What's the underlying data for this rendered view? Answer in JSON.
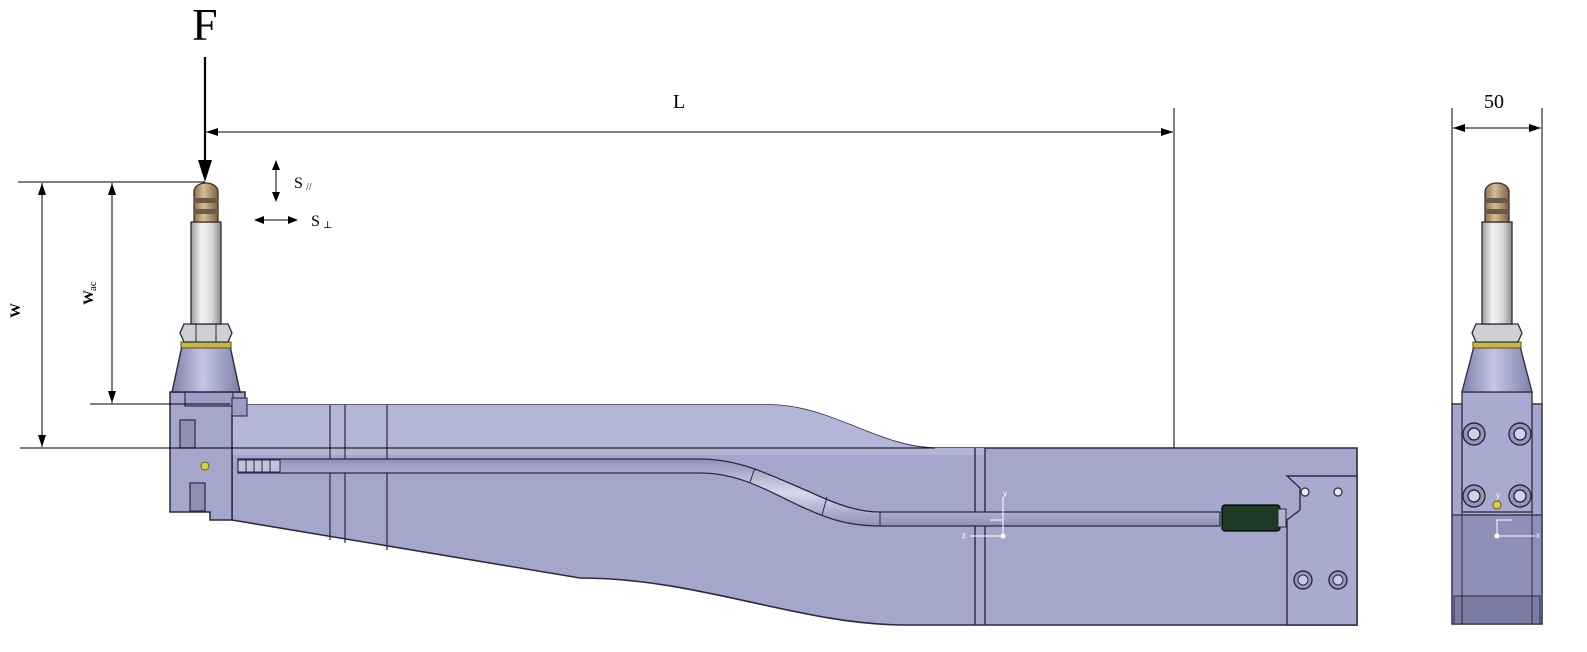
{
  "labels": {
    "force": "F",
    "length": "L",
    "width_dim": "50",
    "s_parallel": "S",
    "s_parallel_sub": "//",
    "s_perp": "S",
    "s_perp_sub": "⊥",
    "w": "W",
    "w_ac": "W",
    "w_ac_sub": "ac"
  },
  "axes_front": {
    "y": "y",
    "z": "z"
  },
  "axes_side": {
    "y": "y",
    "x": "x"
  },
  "colors": {
    "body": "#a4a6cb",
    "body_dark": "#8e90b8",
    "body_edge": "#2a2a40",
    "cap": "#b79a74",
    "cap_band": "#6a5a44",
    "shaft": "#dedede",
    "nut": "#cfcfd4",
    "brass": "#c8b840",
    "insert": "#1e3a24",
    "line": "#000000"
  }
}
